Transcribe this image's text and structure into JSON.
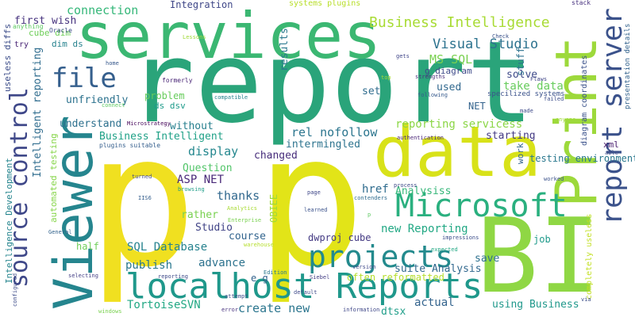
{
  "words": [
    {
      "text": "p",
      "color": "#f0e020"
    },
    {
      "text": "p",
      "color": "#e2e418"
    },
    {
      "text": "report",
      "color": "#2aa47a"
    },
    {
      "text": "services",
      "color": "#3bb772"
    },
    {
      "text": "BI",
      "color": "#8fd744"
    },
    {
      "text": "data",
      "color": "#d8e219"
    },
    {
      "text": "Viewer",
      "color": "#25858e"
    },
    {
      "text": "Print",
      "color": "#9dd93b"
    },
    {
      "text": "report server",
      "color": "#3b528b"
    },
    {
      "text": "localhost Reports",
      "color": "#1f988b"
    },
    {
      "text": "source control",
      "color": "#3f4889"
    },
    {
      "text": "Microsoft",
      "color": "#2ab07f"
    },
    {
      "text": "projects",
      "color": "#238a8d"
    },
    {
      "text": "file",
      "color": "#355f8d"
    },
    {
      "text": "Business Intelligence",
      "color": "#a8db34"
    },
    {
      "text": "Visual Studio",
      "color": "#2c728e"
    },
    {
      "text": "connection",
      "color": "#35b779"
    },
    {
      "text": "Integration",
      "color": "#3f4788"
    },
    {
      "text": "MS SQL",
      "color": "#7ad151"
    },
    {
      "text": "g diagram",
      "color": "#3e4a89"
    },
    {
      "text": "results",
      "color": "#2a788e"
    },
    {
      "text": "first wish",
      "color": "#46327e"
    },
    {
      "text": "cube dim",
      "color": "#6ece58"
    },
    {
      "text": "dim ds",
      "color": "#26828e"
    },
    {
      "text": "Oracle",
      "color": "#3e4c8a"
    },
    {
      "text": "anything",
      "color": "#5ec962"
    },
    {
      "text": "try",
      "color": "#482475"
    },
    {
      "text": "useless diffs",
      "color": "#3d4e8a"
    },
    {
      "text": "Intelligent reporting",
      "color": "#2f6c8e"
    },
    {
      "text": "Business Intelligent",
      "color": "#1fa187"
    },
    {
      "text": "unfriendly",
      "color": "#2c728e"
    },
    {
      "text": "problem",
      "color": "#67cc5c"
    },
    {
      "text": "understand",
      "color": "#2d708e"
    },
    {
      "text": "without",
      "color": "#277f8e"
    },
    {
      "text": "ds dsv",
      "color": "#1e9b8a"
    },
    {
      "text": "rel nofollow",
      "color": "#2b758e"
    },
    {
      "text": "reporting servicess",
      "color": "#8bd646"
    },
    {
      "text": "intermingled",
      "color": "#2c738e"
    },
    {
      "text": "display",
      "color": "#24878e"
    },
    {
      "text": "changed",
      "color": "#472d7b"
    },
    {
      "text": "Question",
      "color": "#52c569"
    },
    {
      "text": "ASP NET",
      "color": "#482878"
    },
    {
      "text": "thanks",
      "color": "#31688e"
    },
    {
      "text": "rather",
      "color": "#7ad151"
    },
    {
      "text": "Studio",
      "color": "#414487"
    },
    {
      "text": "SQL Database",
      "color": "#26828e"
    },
    {
      "text": "course",
      "color": "#32648e"
    },
    {
      "text": "publish",
      "color": "#2a788e"
    },
    {
      "text": "advance",
      "color": "#2c728e"
    },
    {
      "text": "half",
      "color": "#6ece58"
    },
    {
      "text": "create new",
      "color": "#2b758e"
    },
    {
      "text": "TortoiseSVN",
      "color": "#22a884"
    },
    {
      "text": "dwproj cube",
      "color": "#443a83"
    },
    {
      "text": "suite Analysis",
      "color": "#31688e"
    },
    {
      "text": "save",
      "color": "#2d708e"
    },
    {
      "text": "often reformatted",
      "color": "#b5de2b"
    },
    {
      "text": "actual",
      "color": "#33638d"
    },
    {
      "text": "dtsx",
      "color": "#1f9e89"
    },
    {
      "text": "using Business",
      "color": "#1f988b"
    },
    {
      "text": "new Reporting",
      "color": "#22a884"
    },
    {
      "text": "Analysiss",
      "color": "#35b779"
    },
    {
      "text": "href",
      "color": "#2f6c8e"
    },
    {
      "text": "work",
      "color": "#32648e"
    },
    {
      "text": "xml",
      "color": "#481c6e"
    },
    {
      "text": "testing environment",
      "color": "#2a788e"
    },
    {
      "text": "starting",
      "color": "#443a83"
    },
    {
      "text": "solve",
      "color": "#3e4a89"
    },
    {
      "text": "take data",
      "color": "#67cc5c"
    },
    {
      "text": "NET",
      "color": "#33638d"
    },
    {
      "text": "used",
      "color": "#31688e"
    },
    {
      "text": "set",
      "color": "#2f6c8e"
    },
    {
      "text": "stuff",
      "color": "#2c728e"
    },
    {
      "text": "job",
      "color": "#1f9a8a"
    },
    {
      "text": "OBIEE",
      "color": "#9fda3a"
    },
    {
      "text": "e g",
      "color": "#33638d"
    },
    {
      "text": "automated testing",
      "color": "#86d549"
    },
    {
      "text": "Intelligence Development",
      "color": "#25858e"
    },
    {
      "text": "presentation details",
      "color": "#33638d"
    },
    {
      "text": "diagram coordinates",
      "color": "#3b528b"
    },
    {
      "text": "specilized systems",
      "color": "#3b528b"
    },
    {
      "text": "completely useless",
      "color": "#c2df23"
    },
    {
      "text": "systems plugins",
      "color": "#b8de29"
    },
    {
      "text": "stack",
      "color": "#46307e"
    },
    {
      "text": "Lessons",
      "color": "#a0da39"
    },
    {
      "text": "formerly",
      "color": "#482475"
    },
    {
      "text": "home",
      "color": "#38598c"
    },
    {
      "text": "connect",
      "color": "#5ec962"
    },
    {
      "text": "gets",
      "color": "#404688"
    },
    {
      "text": "compatible",
      "color": "#26828e"
    },
    {
      "text": "top",
      "color": "#a5db36"
    },
    {
      "text": "strengths",
      "color": "#472d7b"
    },
    {
      "text": "following",
      "color": "#375b8d"
    },
    {
      "text": "Flaws",
      "color": "#404688"
    },
    {
      "text": "made",
      "color": "#3e4989"
    },
    {
      "text": "failed",
      "color": "#3d4e8a"
    },
    {
      "text": "anyone",
      "color": "#a0da39"
    },
    {
      "text": "authentication",
      "color": "#482475"
    },
    {
      "text": "Microstrategy",
      "color": "#450559"
    },
    {
      "text": "Edition",
      "color": "#2a788e"
    },
    {
      "text": "plugins suitable",
      "color": "#355f8d"
    },
    {
      "text": "turned",
      "color": "#3f4889"
    },
    {
      "text": "browsing",
      "color": "#1f9e89"
    },
    {
      "text": "IIS6",
      "color": "#355e8d"
    },
    {
      "text": "Analytics",
      "color": "#a8db34"
    },
    {
      "text": "Enterprise",
      "color": "#7ad151"
    },
    {
      "text": "page",
      "color": "#3f4788"
    },
    {
      "text": "learned",
      "color": "#3b528b"
    },
    {
      "text": "process",
      "color": "#3e4a89"
    },
    {
      "text": "contenders",
      "color": "#2f6c8e"
    },
    {
      "text": "worked",
      "color": "#3b528b"
    },
    {
      "text": "able",
      "color": "#3e4c8a"
    },
    {
      "text": "Check",
      "color": "#3b528b"
    },
    {
      "text": "p",
      "color": "#5ec962"
    },
    {
      "text": "warehouse",
      "color": "#b5de2b"
    },
    {
      "text": "impressions",
      "color": "#3d4e8a"
    },
    {
      "text": "expected",
      "color": "#22a884"
    },
    {
      "text": "version",
      "color": "#3e4989"
    },
    {
      "text": "Siebel",
      "color": "#433e85"
    },
    {
      "text": "default",
      "color": "#3e4a89"
    },
    {
      "text": "information",
      "color": "#3f4788"
    },
    {
      "text": "attempt",
      "color": "#3e4c8a"
    },
    {
      "text": "error",
      "color": "#46307e"
    },
    {
      "text": "reporting",
      "color": "#3e4a89"
    },
    {
      "text": "selecting",
      "color": "#433e85"
    },
    {
      "text": "windows",
      "color": "#7ad151"
    },
    {
      "text": "configured",
      "color": "#3e4c8a"
    },
    {
      "text": "General",
      "color": "#33638d"
    },
    {
      "text": "via",
      "color": "#3d4e8a"
    }
  ]
}
